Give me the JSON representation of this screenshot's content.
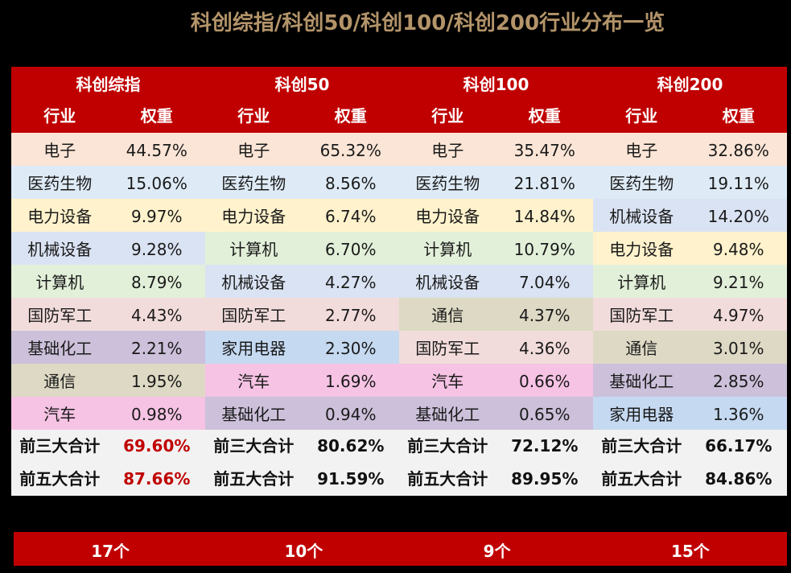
{
  "title": "科创综指/科创50/科创100/科创200行业分布一览",
  "header": {
    "column_labels": {
      "industry": "行业",
      "weight": "权重"
    }
  },
  "colors": {
    "header_bg": "#C00000",
    "title_color": "#B39469",
    "summary_bg": "#F2F2F2",
    "highlight_red": "#C00000",
    "industry": {
      "电子": "#FBE5D6",
      "医药生物": "#DEEBF7",
      "电力设备": "#FFF2CC",
      "机械设备": "#DAE3F3",
      "计算机": "#E2F0D9",
      "国防军工": "#F2DCDB",
      "基础化工": "#CCC0DA",
      "通信": "#DDD9C4",
      "汽车": "#F6C3E4",
      "家用电器": "#C5D9F1"
    }
  },
  "indices": [
    {
      "name": "科创综指",
      "rows": [
        {
          "industry": "电子",
          "weight": "44.57%"
        },
        {
          "industry": "医药生物",
          "weight": "15.06%"
        },
        {
          "industry": "电力设备",
          "weight": "9.97%"
        },
        {
          "industry": "机械设备",
          "weight": "9.28%"
        },
        {
          "industry": "计算机",
          "weight": "8.79%"
        },
        {
          "industry": "国防军工",
          "weight": "4.43%"
        },
        {
          "industry": "基础化工",
          "weight": "2.21%"
        },
        {
          "industry": "通信",
          "weight": "1.95%"
        },
        {
          "industry": "汽车",
          "weight": "0.98%"
        }
      ],
      "top3_label": "前三大合计",
      "top3": "69.60%",
      "top5_label": "前五大合计",
      "top5": "87.66%",
      "highlight": true,
      "count": "17个"
    },
    {
      "name": "科创50",
      "rows": [
        {
          "industry": "电子",
          "weight": "65.32%"
        },
        {
          "industry": "医药生物",
          "weight": "8.56%"
        },
        {
          "industry": "电力设备",
          "weight": "6.74%"
        },
        {
          "industry": "计算机",
          "weight": "6.70%"
        },
        {
          "industry": "机械设备",
          "weight": "4.27%"
        },
        {
          "industry": "国防军工",
          "weight": "2.77%"
        },
        {
          "industry": "家用电器",
          "weight": "2.30%"
        },
        {
          "industry": "汽车",
          "weight": "1.69%"
        },
        {
          "industry": "基础化工",
          "weight": "0.94%"
        }
      ],
      "top3_label": "前三大合计",
      "top3": "80.62%",
      "top5_label": "前五大合计",
      "top5": "91.59%",
      "highlight": false,
      "count": "10个"
    },
    {
      "name": "科创100",
      "rows": [
        {
          "industry": "电子",
          "weight": "35.47%"
        },
        {
          "industry": "医药生物",
          "weight": "21.81%"
        },
        {
          "industry": "电力设备",
          "weight": "14.84%"
        },
        {
          "industry": "计算机",
          "weight": "10.79%"
        },
        {
          "industry": "机械设备",
          "weight": "7.04%"
        },
        {
          "industry": "通信",
          "weight": "4.37%"
        },
        {
          "industry": "国防军工",
          "weight": "4.36%"
        },
        {
          "industry": "汽车",
          "weight": "0.66%"
        },
        {
          "industry": "基础化工",
          "weight": "0.65%"
        }
      ],
      "top3_label": "前三大合计",
      "top3": "72.12%",
      "top5_label": "前五大合计",
      "top5": "89.95%",
      "highlight": false,
      "count": "9个"
    },
    {
      "name": "科创200",
      "rows": [
        {
          "industry": "电子",
          "weight": "32.86%"
        },
        {
          "industry": "医药生物",
          "weight": "19.11%"
        },
        {
          "industry": "机械设备",
          "weight": "14.20%"
        },
        {
          "industry": "电力设备",
          "weight": "9.48%"
        },
        {
          "industry": "计算机",
          "weight": "9.21%"
        },
        {
          "industry": "国防军工",
          "weight": "4.97%"
        },
        {
          "industry": "通信",
          "weight": "3.01%"
        },
        {
          "industry": "基础化工",
          "weight": "2.85%"
        },
        {
          "industry": "家用电器",
          "weight": "1.36%"
        }
      ],
      "top3_label": "前三大合计",
      "top3": "66.17%",
      "top5_label": "前五大合计",
      "top5": "84.86%",
      "highlight": false,
      "count": "15个"
    }
  ]
}
